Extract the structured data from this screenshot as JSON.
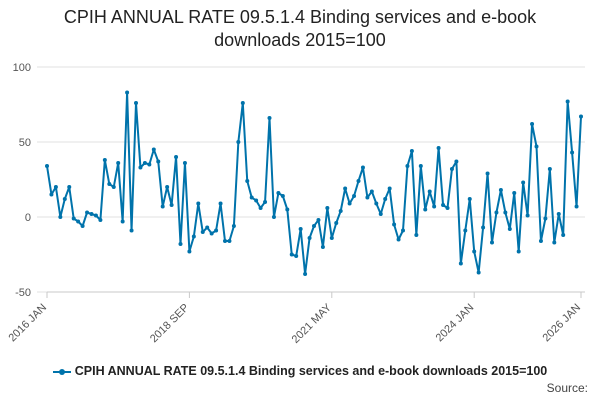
{
  "chart_data": {
    "type": "line",
    "title_line1": "CPIH ANNUAL RATE 09.5.1.4 Binding services and e-book",
    "title_line2": "downloads 2015=100",
    "xlabel": "",
    "ylabel": "",
    "ylim": [
      -50,
      100
    ],
    "yticks": [
      "100",
      "50",
      "0",
      "-50"
    ],
    "ytick_values": [
      100,
      50,
      0,
      -50
    ],
    "xticks": [
      "2016 JAN",
      "2018 SEP",
      "2021 MAY",
      "2024 JAN",
      "2026 JAN"
    ],
    "xtick_index": [
      0,
      32,
      64,
      96,
      120
    ],
    "grid": true,
    "legend_position": "bottom",
    "source_label": "Source:",
    "color": "#0073ab",
    "series": [
      {
        "name": "CPIH ANNUAL RATE 09.5.1.4 Binding services and e-book downloads 2015=100",
        "values": [
          34,
          15,
          20,
          0,
          12,
          20,
          -1,
          -3,
          -6,
          3,
          2,
          1,
          -2,
          38,
          22,
          20,
          36,
          -3,
          83,
          -9,
          76,
          33,
          36,
          35,
          45,
          37,
          7,
          20,
          8,
          40,
          -18,
          36,
          -23,
          -13,
          9,
          -10,
          -7,
          -11,
          -9,
          9,
          -16,
          -16,
          -6,
          50,
          76,
          24,
          13,
          11,
          6,
          10,
          66,
          0,
          16,
          14,
          5,
          -25,
          -26,
          -8,
          -38,
          -14,
          -6,
          -2,
          -20,
          6,
          -14,
          -4,
          4,
          19,
          9,
          14,
          24,
          33,
          13,
          17,
          9,
          2,
          12,
          19,
          -5,
          -15,
          -9,
          34,
          44,
          -12,
          34,
          5,
          17,
          7,
          46,
          8,
          6,
          32,
          37,
          -31,
          -9,
          12,
          -23,
          -37,
          -7,
          29,
          -17,
          3,
          18,
          3,
          -8,
          16,
          -23,
          23,
          1,
          62,
          47,
          -16,
          -1,
          32,
          -17,
          2,
          -12,
          77,
          43,
          7,
          67
        ]
      }
    ]
  }
}
